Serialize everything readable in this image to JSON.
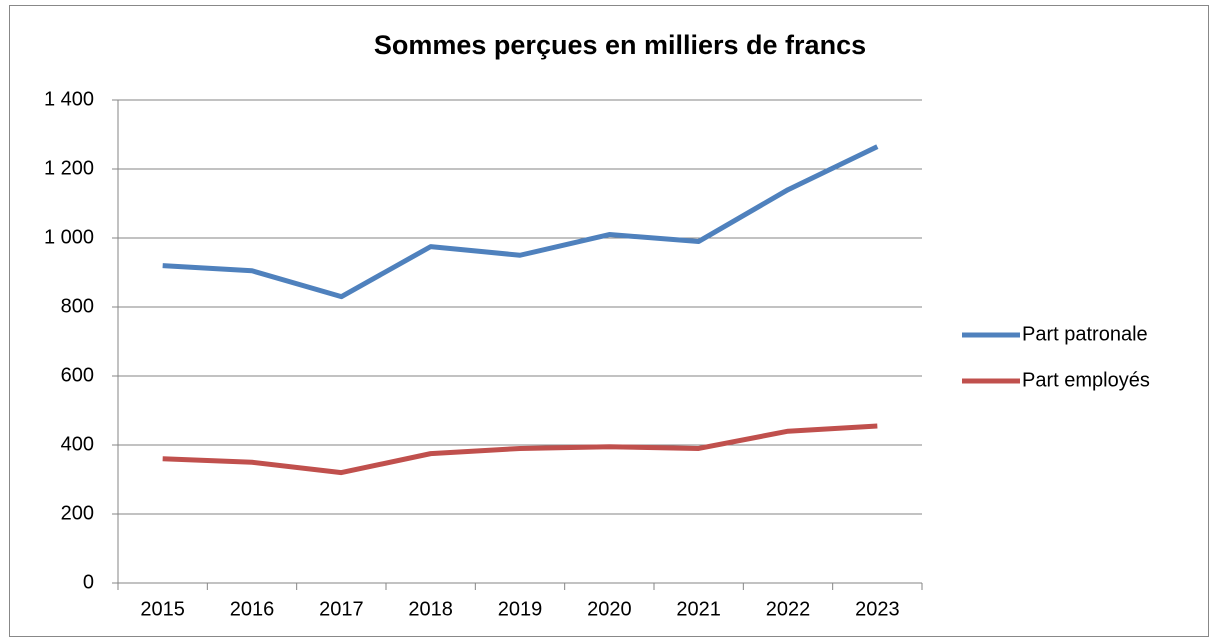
{
  "chart_data": {
    "type": "line",
    "title": "Sommes perçues en milliers de francs",
    "categories": [
      "2015",
      "2016",
      "2017",
      "2018",
      "2019",
      "2020",
      "2021",
      "2022",
      "2023"
    ],
    "series": [
      {
        "name": "Part patronale",
        "color": "#4f81bd",
        "values": [
          920,
          905,
          830,
          975,
          950,
          1010,
          990,
          1140,
          1265
        ]
      },
      {
        "name": "Part employés",
        "color": "#c0504d",
        "values": [
          360,
          350,
          320,
          375,
          390,
          395,
          390,
          440,
          455
        ]
      }
    ],
    "ylim": [
      0,
      1400
    ],
    "yticks": [
      0,
      200,
      400,
      600,
      800,
      {
        "value": 1000,
        "label": "1 000"
      },
      {
        "value": 1200,
        "label": "1 200"
      },
      {
        "value": 1400,
        "label": "1 400"
      }
    ],
    "grid": true,
    "legend": "right"
  }
}
